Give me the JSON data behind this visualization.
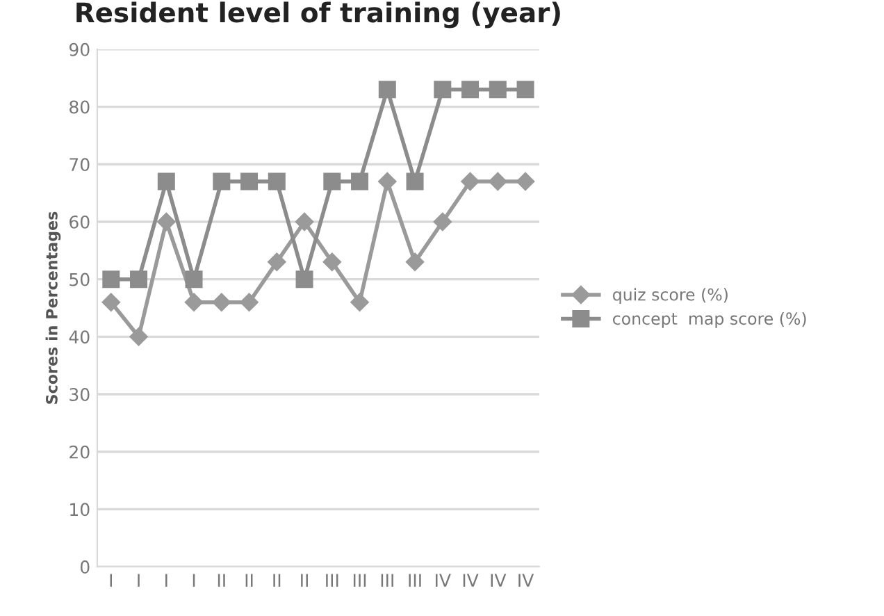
{
  "chart_data": {
    "type": "line",
    "title": "Resident level of training (year)",
    "ylabel": "Scores in Percentages",
    "categories": [
      "I",
      "I",
      "I",
      "I",
      "II",
      "II",
      "II",
      "II",
      "III",
      "III",
      "III",
      "III",
      "IV",
      "IV",
      "IV",
      "IV"
    ],
    "series": [
      {
        "name": "quiz score (%)",
        "color": "#9a9a9a",
        "marker": "diamond",
        "values": [
          46,
          40,
          60,
          46,
          46,
          46,
          53,
          60,
          53,
          46,
          67,
          53,
          60,
          67,
          67,
          67
        ]
      },
      {
        "name": "concept  map score (%)",
        "color": "#8c8c8c",
        "marker": "square",
        "values": [
          50,
          50,
          67,
          50,
          67,
          67,
          67,
          50,
          67,
          67,
          83,
          67,
          83,
          83,
          83,
          83
        ]
      }
    ],
    "ylim": [
      0,
      90
    ],
    "yticks": [
      0,
      10,
      20,
      30,
      40,
      50,
      60,
      70,
      80,
      90
    ],
    "grid": "y",
    "legend": "right",
    "line_style": "solid"
  }
}
